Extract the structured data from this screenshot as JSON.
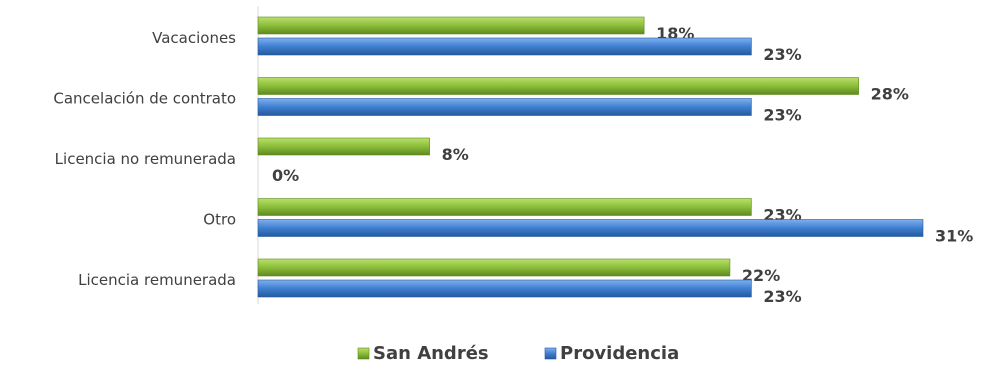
{
  "chart_data": {
    "type": "bar",
    "orientation": "horizontal",
    "categories": [
      "Vacaciones",
      "Cancelación de contrato",
      "Licencia no remunerada",
      "Otro",
      "Licencia remunerada"
    ],
    "series": [
      {
        "name": "San Andrés",
        "values": [
          18,
          28,
          8,
          23,
          22
        ],
        "labels": [
          "18%",
          "28%",
          "8%",
          "23%",
          "22%"
        ],
        "color": "#8cbd3a"
      },
      {
        "name": "Providencia",
        "values": [
          23,
          23,
          0,
          31,
          23
        ],
        "labels": [
          "23%",
          "23%",
          "0%",
          "31%",
          "23%"
        ],
        "color": "#3f7fd0"
      }
    ],
    "xlim": [
      0,
      31
    ],
    "grid": false,
    "legend": "bottom"
  }
}
